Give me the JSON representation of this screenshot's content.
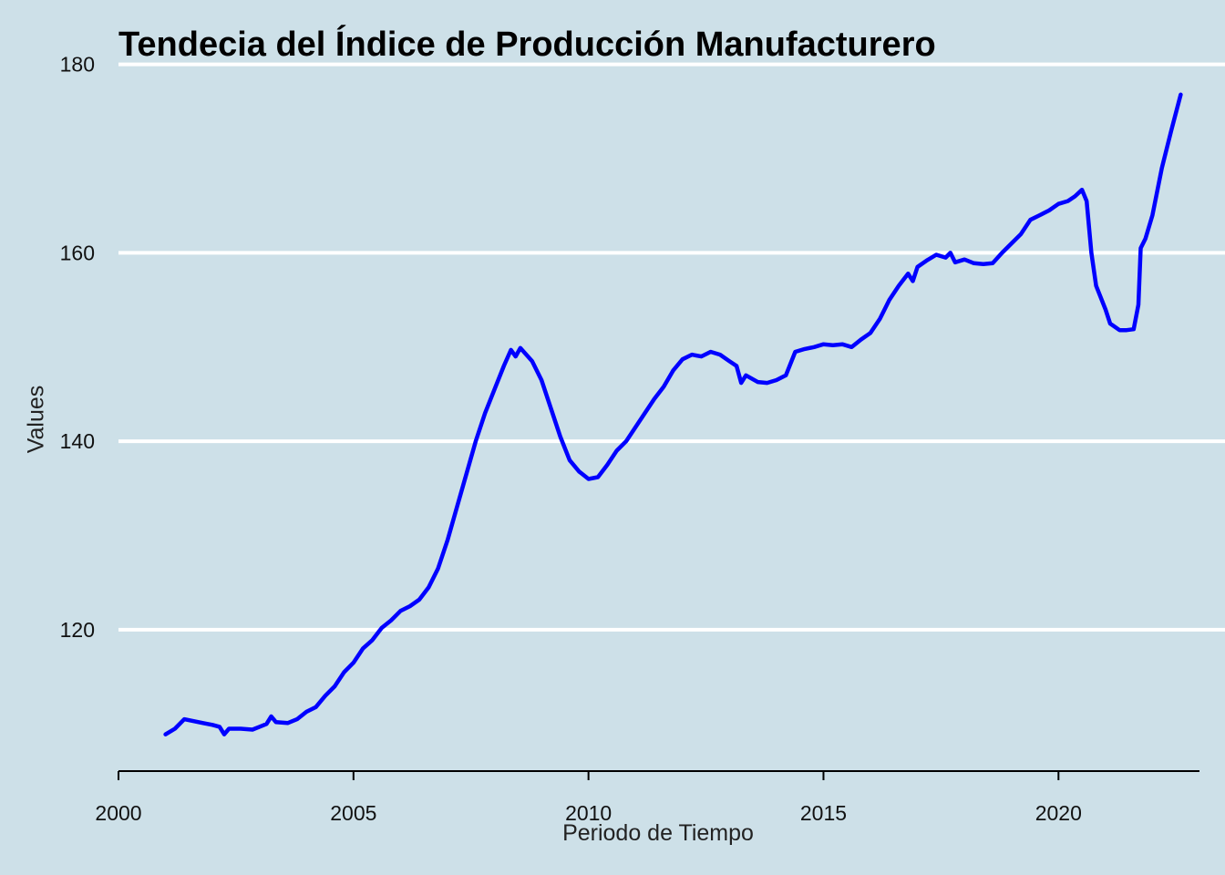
{
  "chart_data": {
    "type": "line",
    "title": "Tendecia del Índice de Producción Manufacturero",
    "xlabel": "Periodo de Tiempo",
    "ylabel": "Values",
    "xlim": [
      2000,
      2023
    ],
    "ylim": [
      105,
      182
    ],
    "x_ticks": [
      2000,
      2005,
      2010,
      2015,
      2020
    ],
    "y_ticks": [
      120,
      140,
      160,
      180
    ],
    "grid": "horizontal",
    "line_color": "#0000ff",
    "grid_color": "#ffffff",
    "background": "#cde0e8",
    "series": [
      {
        "name": "Índice de Producción Manufacturero",
        "points": [
          [
            2001.0,
            108.9
          ],
          [
            2001.2,
            109.5
          ],
          [
            2001.4,
            110.5
          ],
          [
            2001.6,
            110.3
          ],
          [
            2001.8,
            110.1
          ],
          [
            2002.0,
            109.9
          ],
          [
            2002.15,
            109.7
          ],
          [
            2002.25,
            108.9
          ],
          [
            2002.35,
            109.5
          ],
          [
            2002.6,
            109.5
          ],
          [
            2002.85,
            109.4
          ],
          [
            2003.0,
            109.7
          ],
          [
            2003.15,
            110.0
          ],
          [
            2003.25,
            110.8
          ],
          [
            2003.35,
            110.2
          ],
          [
            2003.6,
            110.1
          ],
          [
            2003.8,
            110.5
          ],
          [
            2004.0,
            111.3
          ],
          [
            2004.2,
            111.8
          ],
          [
            2004.4,
            113.0
          ],
          [
            2004.6,
            114.0
          ],
          [
            2004.8,
            115.5
          ],
          [
            2005.0,
            116.5
          ],
          [
            2005.2,
            118.0
          ],
          [
            2005.4,
            118.9
          ],
          [
            2005.6,
            120.2
          ],
          [
            2005.8,
            121.0
          ],
          [
            2006.0,
            122.0
          ],
          [
            2006.2,
            122.5
          ],
          [
            2006.4,
            123.2
          ],
          [
            2006.6,
            124.5
          ],
          [
            2006.8,
            126.5
          ],
          [
            2007.0,
            129.5
          ],
          [
            2007.2,
            133.0
          ],
          [
            2007.4,
            136.5
          ],
          [
            2007.6,
            140.0
          ],
          [
            2007.8,
            143.0
          ],
          [
            2008.0,
            145.5
          ],
          [
            2008.2,
            148.0
          ],
          [
            2008.35,
            149.7
          ],
          [
            2008.45,
            149.0
          ],
          [
            2008.55,
            149.9
          ],
          [
            2008.8,
            148.5
          ],
          [
            2009.0,
            146.5
          ],
          [
            2009.2,
            143.5
          ],
          [
            2009.4,
            140.5
          ],
          [
            2009.6,
            138.0
          ],
          [
            2009.8,
            136.8
          ],
          [
            2010.0,
            136.0
          ],
          [
            2010.2,
            136.2
          ],
          [
            2010.4,
            137.5
          ],
          [
            2010.6,
            139.0
          ],
          [
            2010.8,
            140.0
          ],
          [
            2011.0,
            141.5
          ],
          [
            2011.2,
            143.0
          ],
          [
            2011.4,
            144.5
          ],
          [
            2011.6,
            145.8
          ],
          [
            2011.8,
            147.5
          ],
          [
            2012.0,
            148.7
          ],
          [
            2012.2,
            149.2
          ],
          [
            2012.4,
            149.0
          ],
          [
            2012.6,
            149.5
          ],
          [
            2012.8,
            149.2
          ],
          [
            2013.0,
            148.5
          ],
          [
            2013.15,
            148.0
          ],
          [
            2013.25,
            146.2
          ],
          [
            2013.35,
            147.0
          ],
          [
            2013.6,
            146.3
          ],
          [
            2013.8,
            146.2
          ],
          [
            2014.0,
            146.5
          ],
          [
            2014.2,
            147.0
          ],
          [
            2014.4,
            149.5
          ],
          [
            2014.6,
            149.8
          ],
          [
            2014.8,
            150.0
          ],
          [
            2015.0,
            150.3
          ],
          [
            2015.2,
            150.2
          ],
          [
            2015.4,
            150.3
          ],
          [
            2015.6,
            150.0
          ],
          [
            2015.8,
            150.8
          ],
          [
            2016.0,
            151.5
          ],
          [
            2016.2,
            153.0
          ],
          [
            2016.4,
            155.0
          ],
          [
            2016.6,
            156.5
          ],
          [
            2016.8,
            157.8
          ],
          [
            2016.9,
            157.0
          ],
          [
            2017.0,
            158.5
          ],
          [
            2017.2,
            159.2
          ],
          [
            2017.4,
            159.8
          ],
          [
            2017.6,
            159.5
          ],
          [
            2017.7,
            160.0
          ],
          [
            2017.8,
            159.0
          ],
          [
            2018.0,
            159.3
          ],
          [
            2018.2,
            158.9
          ],
          [
            2018.4,
            158.8
          ],
          [
            2018.6,
            158.9
          ],
          [
            2018.8,
            160.0
          ],
          [
            2019.0,
            161.0
          ],
          [
            2019.2,
            162.0
          ],
          [
            2019.4,
            163.5
          ],
          [
            2019.6,
            164.0
          ],
          [
            2019.8,
            164.5
          ],
          [
            2020.0,
            165.2
          ],
          [
            2020.2,
            165.5
          ],
          [
            2020.35,
            166.0
          ],
          [
            2020.5,
            166.7
          ],
          [
            2020.6,
            165.5
          ],
          [
            2020.7,
            160.0
          ],
          [
            2020.8,
            156.5
          ],
          [
            2021.0,
            154.0
          ],
          [
            2021.1,
            152.5
          ],
          [
            2021.3,
            151.8
          ],
          [
            2021.45,
            151.8
          ],
          [
            2021.6,
            151.9
          ],
          [
            2021.7,
            154.5
          ],
          [
            2021.75,
            160.5
          ],
          [
            2021.85,
            161.5
          ],
          [
            2022.0,
            164.0
          ],
          [
            2022.2,
            169.0
          ],
          [
            2022.4,
            173.0
          ],
          [
            2022.6,
            176.8
          ]
        ]
      }
    ]
  }
}
